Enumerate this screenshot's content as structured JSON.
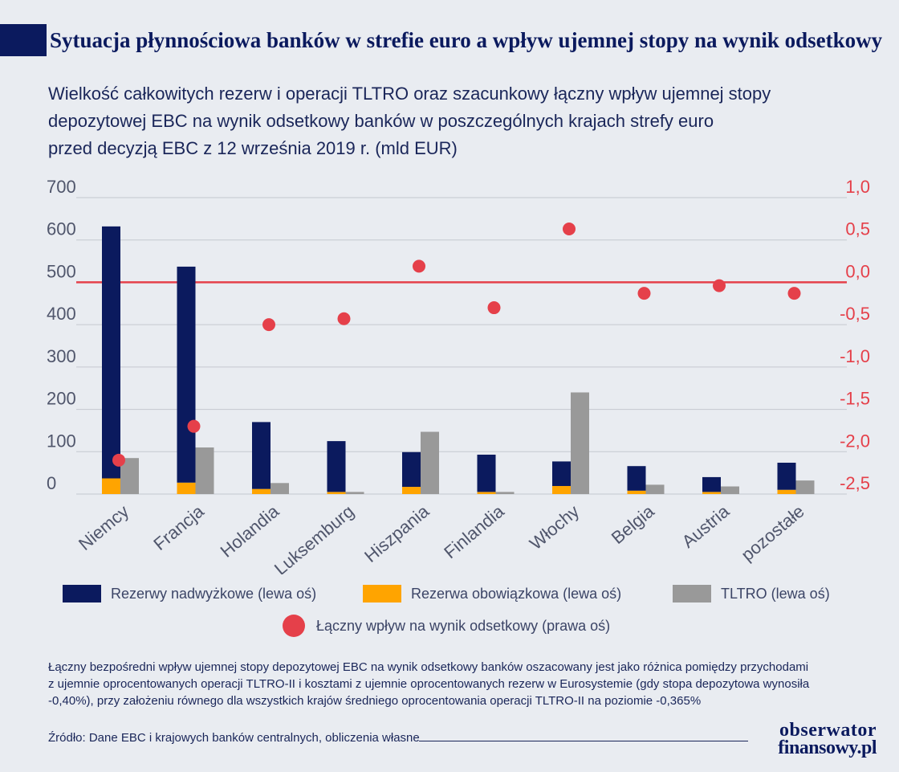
{
  "header": {
    "title": "Sytuacja płynnościowa banków w strefie euro a wpływ ujemnej stopy na wynik odsetkowy",
    "subtitle_lines": [
      "Wielkość całkowitych rezerw i operacji TLTRO oraz szacunkowy łączny wpływ ujemnej stopy",
      "depozytowej EBC na wynik odsetkowy banków w poszczególnych krajach strefy euro",
      "przed decyzją EBC z 12 września 2019 r. (mld EUR)"
    ]
  },
  "colors": {
    "navy": "#0b1a5e",
    "orange": "#ffa400",
    "gray": "#999999",
    "red": "#e5404a",
    "axis_text": "#50566c"
  },
  "chart_data": {
    "type": "bar",
    "categories": [
      "Niemcy",
      "Francja",
      "Holandia",
      "Luksemburg",
      "Hiszpania",
      "Finlandia",
      "Włochy",
      "Belgia",
      "Austria",
      "pozostałe"
    ],
    "left_axis": {
      "ticks": [
        "700",
        "600",
        "500",
        "400",
        "300",
        "200",
        "100",
        "0"
      ],
      "ylim": [
        0,
        700
      ]
    },
    "right_axis": {
      "ticks": [
        "1,0",
        "0,5",
        "0,0",
        "-0,5",
        "-1,0",
        "-1,5",
        "-2,0",
        "-2,5"
      ],
      "ylim": [
        -2.5,
        1.0
      ]
    },
    "series": [
      {
        "name": "Rezerwy nadwyżkowe (lewa oś)",
        "axis": "left",
        "color_key": "navy",
        "stack": "reserves",
        "values": [
          595,
          510,
          158,
          120,
          82,
          88,
          58,
          58,
          35,
          64
        ]
      },
      {
        "name": "Rezerwa obowiązkowa (lewa oś)",
        "axis": "left",
        "color_key": "orange",
        "stack": "reserves",
        "values": [
          37,
          27,
          12,
          5,
          17,
          5,
          19,
          8,
          5,
          10
        ]
      },
      {
        "name": "TLTRO (lewa oś)",
        "axis": "left",
        "color_key": "gray",
        "stack": "tltro",
        "values": [
          85,
          110,
          26,
          5,
          147,
          5,
          240,
          22,
          18,
          32
        ]
      },
      {
        "name": "Łączny wpływ na wynik odsetkowy (prawa oś)",
        "axis": "right",
        "type": "scatter",
        "color_key": "red",
        "values": [
          -2.1,
          -1.7,
          -0.5,
          -0.43,
          0.19,
          -0.3,
          0.63,
          -0.13,
          -0.04,
          -0.13
        ]
      }
    ],
    "reference_line": {
      "axis": "right",
      "value": 0.0
    },
    "grid": true,
    "legend_position": "bottom"
  },
  "legend": {
    "items": [
      "Rezerwy nadwyżkowe (lewa oś)",
      "Rezerwa obowiązkowa (lewa oś)",
      "TLTRO (lewa oś)",
      "Łączny wpływ na wynik odsetkowy (prawa oś)"
    ]
  },
  "footnote": {
    "lines": [
      "Łączny bezpośredni wpływ ujemnej stopy depozytowej EBC na wynik odsetkowy banków oszacowany jest jako różnica pomiędzy przychodami",
      "z ujemnie oprocentowanych operacji TLTRO-II i kosztami z ujemnie oprocentowanych rezerw w Eurosystemie (gdy stopa depozytowa wynosiła",
      "-0,40%), przy założeniu równego dla wszystkich krajów średniego oprocentowania operacji TLTRO-II na poziomie -0,365%"
    ]
  },
  "source": "Źródło: Dane EBC i krajowych banków centralnych, obliczenia własne",
  "brand": {
    "line1": "obserwator",
    "line2": "finansowy.pl"
  }
}
